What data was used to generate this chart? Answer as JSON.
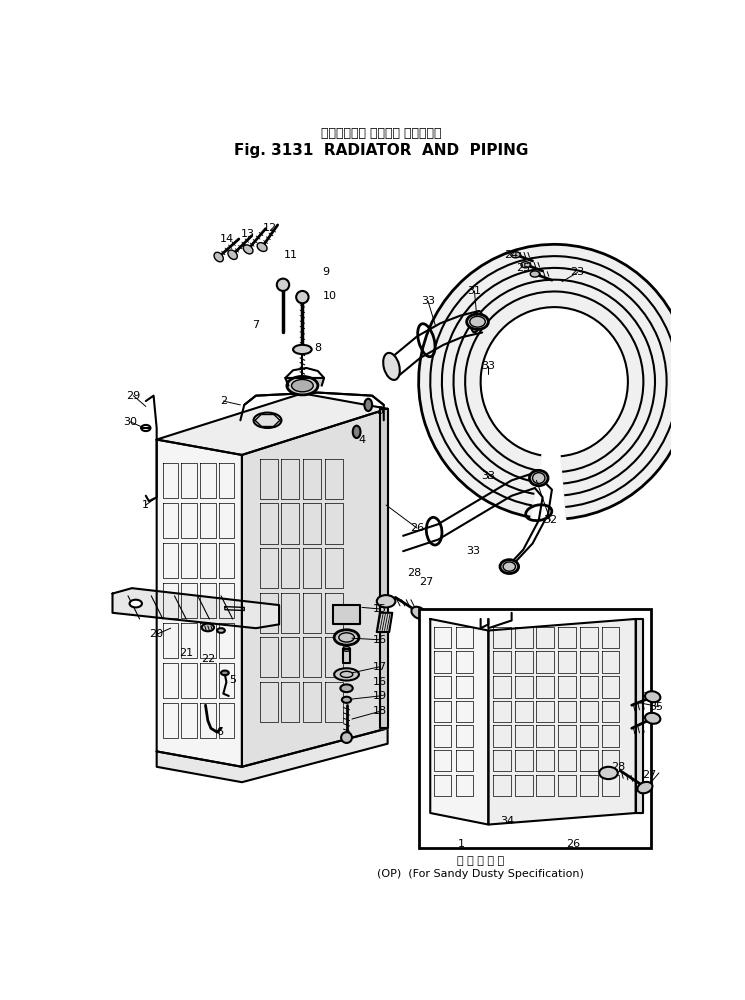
{
  "title_japanese": "ラジエータ　 および　 パイピング",
  "title_english": "Fig. 3131  RADIATOR  AND  PIPING",
  "footer_japanese": "砂 塵 地 仕 様",
  "footer_english": "(OP)  (For Sandy Dusty Specification)",
  "bg_color": "#ffffff",
  "line_color": "#000000",
  "figsize": [
    7.45,
    10.0
  ],
  "dpi": 100
}
